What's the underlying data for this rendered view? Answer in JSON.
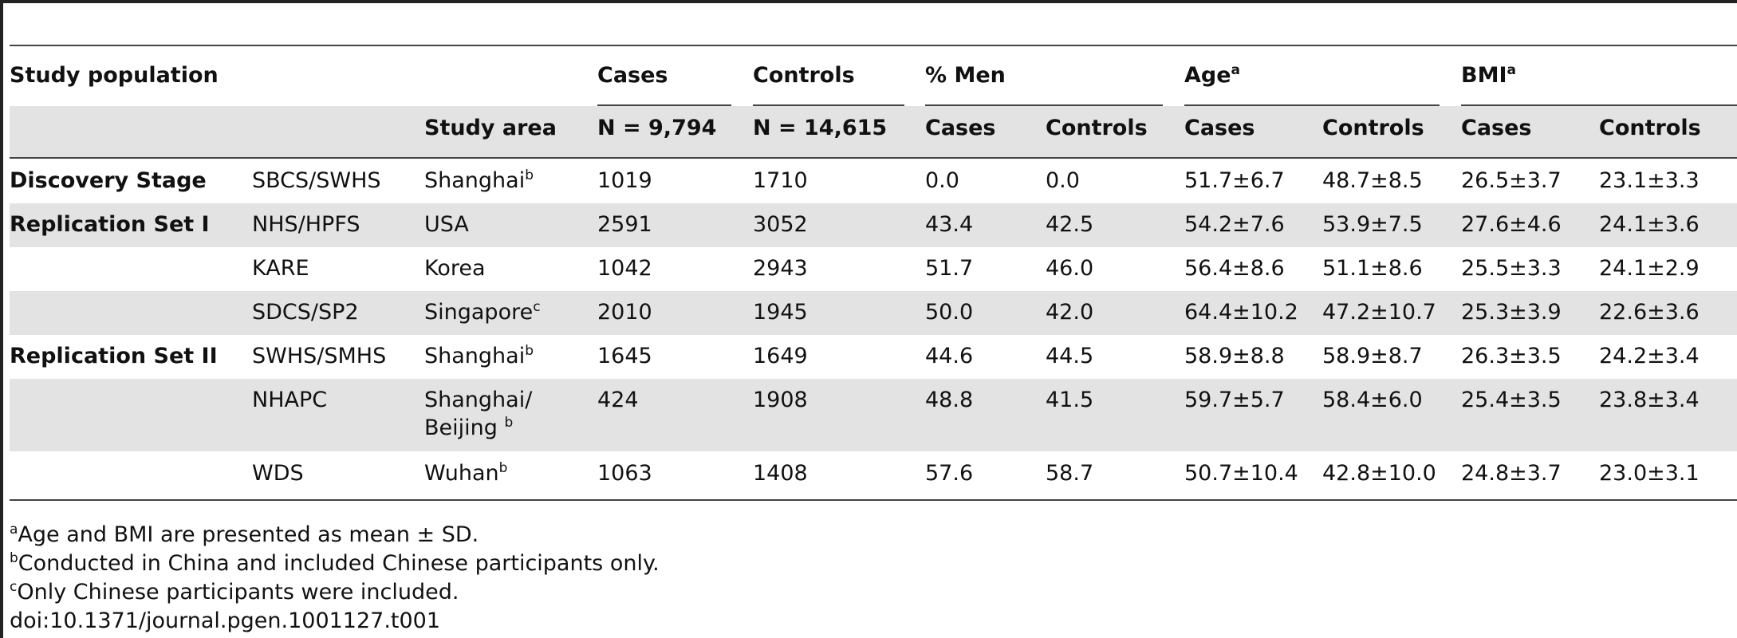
{
  "header": {
    "study_population": "Study population",
    "cases": "Cases",
    "controls": "Controls",
    "pct_men": "% Men",
    "age": "Age",
    "age_sup": "a",
    "bmi": "BMI",
    "bmi_sup": "a",
    "study_area": "Study area",
    "n_cases": "N = 9,794",
    "n_controls": "N = 14,615",
    "men_cases": "Cases",
    "men_controls": "Controls",
    "age_cases": "Cases",
    "age_controls": "Controls",
    "bmi_cases": "Cases",
    "bmi_controls": "Controls"
  },
  "rows": [
    {
      "stage": "Discovery Stage",
      "study": "SBCS/SWHS",
      "area": "Shanghai",
      "area_sup": "b",
      "area2": "",
      "area2_sup": "",
      "cases": "1019",
      "controls": "1710",
      "men_cases": "0.0",
      "men_controls": "0.0",
      "age_cases": "51.7±6.7",
      "age_controls": "48.7±8.5",
      "bmi_cases": "26.5±3.7",
      "bmi_controls": "23.1±3.3"
    },
    {
      "stage": "Replication Set I",
      "study": "NHS/HPFS",
      "area": "USA",
      "area_sup": "",
      "area2": "",
      "area2_sup": "",
      "cases": "2591",
      "controls": "3052",
      "men_cases": "43.4",
      "men_controls": "42.5",
      "age_cases": "54.2±7.6",
      "age_controls": "53.9±7.5",
      "bmi_cases": "27.6±4.6",
      "bmi_controls": "24.1±3.6"
    },
    {
      "stage": "",
      "study": "KARE",
      "area": "Korea",
      "area_sup": "",
      "area2": "",
      "area2_sup": "",
      "cases": "1042",
      "controls": "2943",
      "men_cases": "51.7",
      "men_controls": "46.0",
      "age_cases": "56.4±8.6",
      "age_controls": "51.1±8.6",
      "bmi_cases": "25.5±3.3",
      "bmi_controls": "24.1±2.9"
    },
    {
      "stage": "",
      "study": "SDCS/SP2",
      "area": "Singapore",
      "area_sup": "c",
      "area2": "",
      "area2_sup": "",
      "cases": "2010",
      "controls": "1945",
      "men_cases": "50.0",
      "men_controls": "42.0",
      "age_cases": "64.4±10.2",
      "age_controls": "47.2±10.7",
      "bmi_cases": "25.3±3.9",
      "bmi_controls": "22.6±3.6"
    },
    {
      "stage": "Replication Set II",
      "study": "SWHS/SMHS",
      "area": "Shanghai",
      "area_sup": "b",
      "area2": "",
      "area2_sup": "",
      "cases": "1645",
      "controls": "1649",
      "men_cases": "44.6",
      "men_controls": "44.5",
      "age_cases": "58.9±8.8",
      "age_controls": "58.9±8.7",
      "bmi_cases": "26.3±3.5",
      "bmi_controls": "24.2±3.4"
    },
    {
      "stage": "",
      "study": "NHAPC",
      "area": "Shanghai/",
      "area_sup": "",
      "area2": "Beijing",
      "area2_sup": "b",
      "cases": "424",
      "controls": "1908",
      "men_cases": "48.8",
      "men_controls": "41.5",
      "age_cases": "59.7±5.7",
      "age_controls": "58.4±6.0",
      "bmi_cases": "25.4±3.5",
      "bmi_controls": "23.8±3.4"
    },
    {
      "stage": "",
      "study": "WDS",
      "area": "Wuhan",
      "area_sup": "b",
      "area2": "",
      "area2_sup": "",
      "cases": "1063",
      "controls": "1408",
      "men_cases": "57.6",
      "men_controls": "58.7",
      "age_cases": "50.7±10.4",
      "age_controls": "42.8±10.0",
      "bmi_cases": "24.8±3.7",
      "bmi_controls": "23.0±3.1"
    }
  ],
  "footnotes": [
    {
      "sup": "a",
      "text": "Age and BMI are presented as mean ± SD."
    },
    {
      "sup": "b",
      "text": "Conducted in China and included Chinese participants only."
    },
    {
      "sup": "c",
      "text": "Only Chinese participants were included."
    },
    {
      "sup": "",
      "text": "doi:10.1371/journal.pgen.1001127.t001"
    }
  ]
}
